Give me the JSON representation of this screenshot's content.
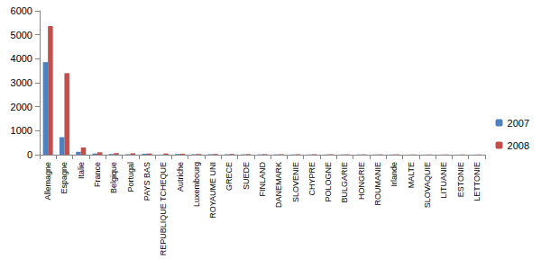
{
  "chart_data": {
    "type": "bar",
    "categories": [
      "Allemagne",
      "Espagne",
      "Italie",
      "France",
      "Belgique",
      "Portugal",
      "PAYS BAS",
      "REPUBLIQUE TCHEQUE",
      "Autriche",
      "Luxembourg",
      "ROYAUME UNI",
      "GRECE",
      "SUEDE",
      "FINLAND",
      "DANEMARK",
      "SLOVENIE",
      "CHYPRE",
      "POLOGNE",
      "BULGARIE",
      "HONGRIE",
      "ROUMANIE",
      "Irlande",
      "MALTE",
      "SLOVAQUIE",
      "LITUANIE",
      "ESTONIE",
      "LETTONIE"
    ],
    "series": [
      {
        "name": "2007",
        "color": "#4f81bd",
        "values": [
          3860,
          730,
          120,
          50,
          30,
          20,
          40,
          5,
          30,
          20,
          20,
          20,
          15,
          15,
          15,
          10,
          10,
          10,
          10,
          10,
          10,
          10,
          5,
          5,
          5,
          5,
          5
        ]
      },
      {
        "name": "2008",
        "color": "#c0504d",
        "values": [
          5360,
          3400,
          300,
          100,
          70,
          60,
          50,
          50,
          40,
          30,
          30,
          30,
          25,
          25,
          20,
          20,
          20,
          20,
          15,
          15,
          15,
          15,
          10,
          10,
          10,
          10,
          10
        ]
      }
    ],
    "ylim": [
      0,
      6000
    ],
    "yticks": [
      0,
      1000,
      2000,
      3000,
      4000,
      5000,
      6000
    ],
    "grid": false,
    "legend": "right"
  }
}
